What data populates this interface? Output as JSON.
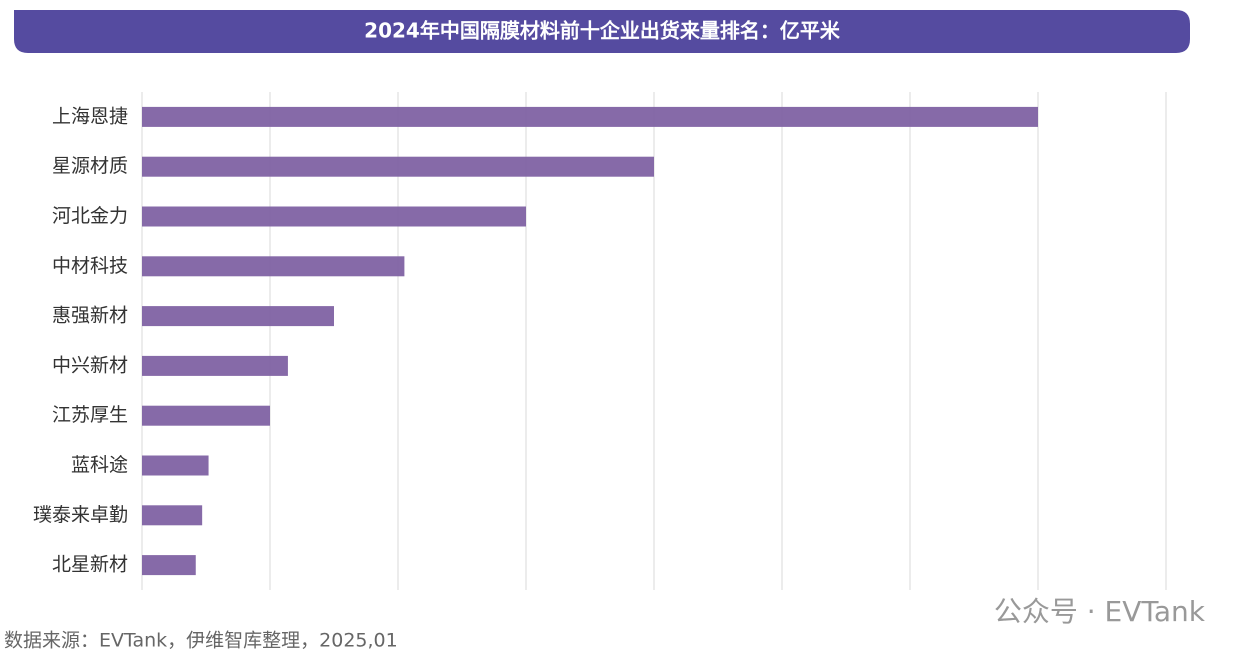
{
  "chart_data": {
    "type": "bar",
    "orientation": "horizontal",
    "title": "2024年中国隔膜材料前十企业出货来量排名：亿平米",
    "categories": [
      "上海恩捷",
      "星源材质",
      "河北金力",
      "中材科技",
      "惠强新材",
      "中兴新材",
      "江苏厚生",
      "蓝科途",
      "璞泰来卓勤",
      "北星新材"
    ],
    "values": [
      70,
      40,
      30,
      20.5,
      15,
      11.4,
      10,
      5.2,
      4.7,
      4.2
    ],
    "color": "#7f62a3",
    "xlim": [
      0,
      80
    ],
    "xticks": [
      0,
      10,
      20,
      30,
      40,
      50,
      60,
      70,
      80
    ],
    "grid": true,
    "source": "数据来源：EVTank，伊维智库整理，2025,01",
    "watermark": "公众号 · EVTank"
  }
}
